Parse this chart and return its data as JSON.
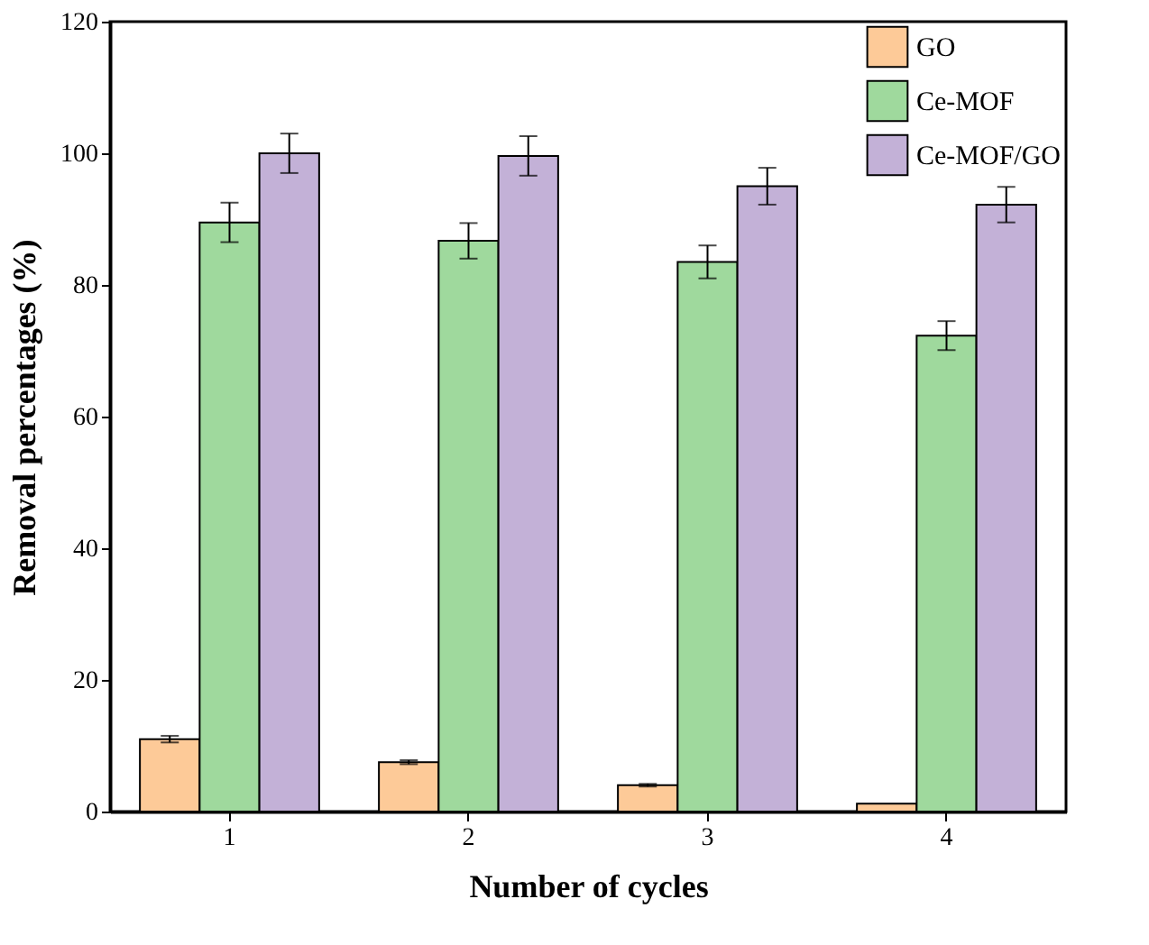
{
  "chart_data": {
    "type": "bar",
    "xlabel": "Number of cycles",
    "ylabel": "Removal percentages (%)",
    "categories": [
      "1",
      "2",
      "3",
      "4"
    ],
    "series": [
      {
        "name": "GO",
        "color": "#fdca98",
        "values": [
          11,
          7.5,
          4,
          1.2
        ],
        "errors": [
          0.5,
          0.3,
          0.2,
          null
        ]
      },
      {
        "name": "Ce-MOF",
        "color": "#9fd99d",
        "values": [
          89.5,
          86.7,
          83.5,
          72.3
        ],
        "errors": [
          3,
          2.7,
          2.5,
          2.2
        ]
      },
      {
        "name": "Ce-MOF/GO",
        "color": "#c3b1d7",
        "values": [
          100,
          99.6,
          95,
          92.2
        ],
        "errors": [
          3,
          3,
          2.8,
          2.7
        ]
      }
    ],
    "ylim": [
      0,
      120
    ],
    "yticks": [
      0,
      20,
      40,
      60,
      80,
      100,
      120
    ],
    "grid": false,
    "legend": "top right"
  }
}
